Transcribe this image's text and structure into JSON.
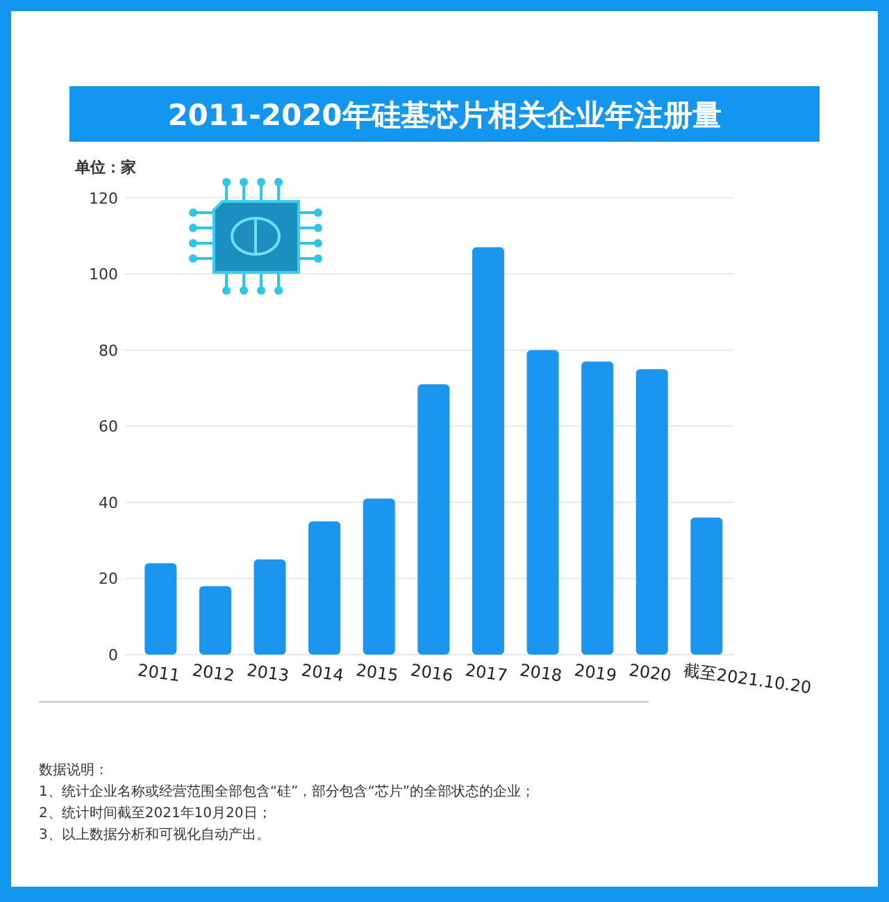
{
  "chart_data": {
    "type": "bar",
    "title": "2011-2020年硅基芯片相关企业年注册量",
    "ylabel": "单位：家",
    "categories": [
      "2011",
      "2012",
      "2013",
      "2014",
      "2015",
      "2016",
      "2017",
      "2018",
      "2019",
      "2020",
      "截至2021.10.20"
    ],
    "values": [
      24,
      18,
      25,
      35,
      41,
      71,
      107,
      80,
      77,
      75,
      36
    ],
    "color": "#1a96f0",
    "ylim": [
      0,
      120
    ],
    "yticks": [
      0,
      20,
      40,
      60,
      80,
      100,
      120
    ],
    "grid": "y",
    "annotations": [
      "数据说明：",
      "1、统计企业名称或经营范围全部包含“硅”，部分包含“芯片”的全部状态的企业；",
      "2、统计时间截至2021年10月20日；",
      "3、以上数据分析和可视化自动产出。"
    ]
  }
}
